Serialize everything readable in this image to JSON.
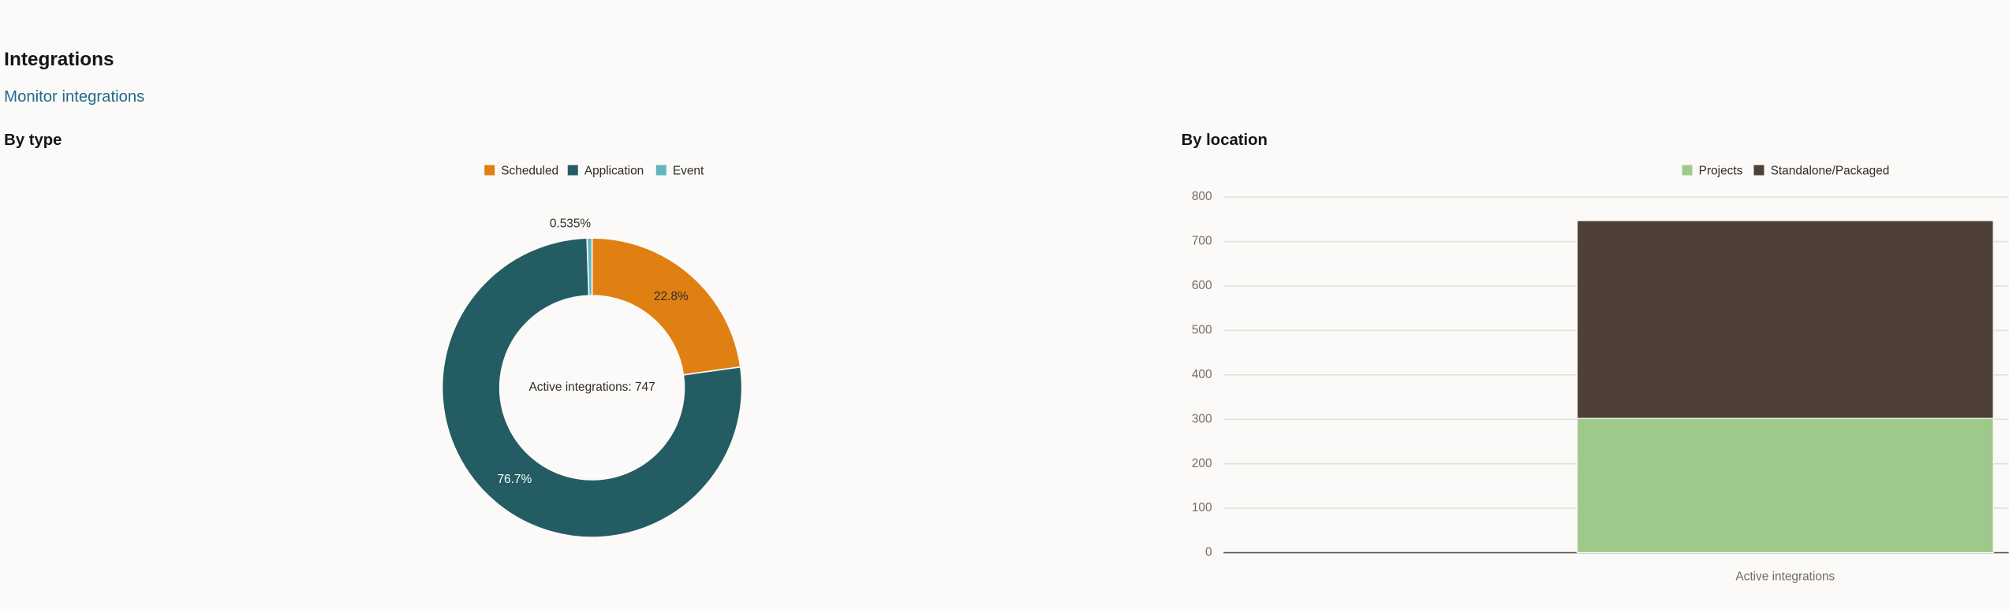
{
  "header": {
    "title": "Integrations",
    "link": "Monitor integrations"
  },
  "chart_data": [
    {
      "type": "donut",
      "title": "By type",
      "categories": [
        "Scheduled",
        "Application",
        "Event"
      ],
      "values": [
        22.8,
        76.7,
        0.535
      ],
      "value_labels": [
        "22.8%",
        "76.7%",
        "0.535%"
      ],
      "colors": [
        "#e07f12",
        "#235d63",
        "#5fb8bf"
      ],
      "center_label": "Active integrations: 747"
    },
    {
      "type": "bar",
      "title": "By location",
      "categories": [
        "Active integrations"
      ],
      "series": [
        {
          "name": "Projects",
          "color": "#9fc98a",
          "values": [
            302
          ]
        },
        {
          "name": "Standalone/Packaged",
          "color": "#4e4037",
          "values": [
            445
          ]
        }
      ],
      "stacked": true,
      "ylim": [
        0,
        800
      ],
      "yticks": [
        0,
        100,
        200,
        300,
        400,
        500,
        600,
        700,
        800
      ],
      "grid": true
    }
  ]
}
